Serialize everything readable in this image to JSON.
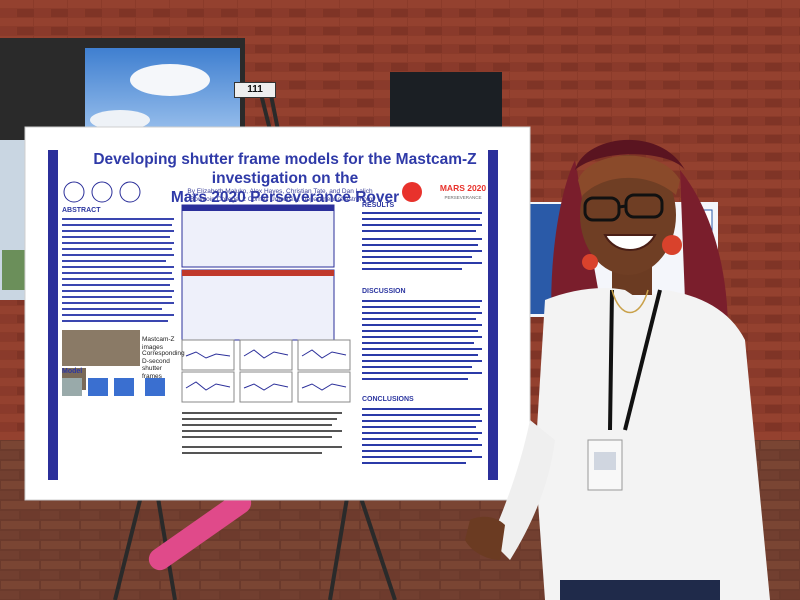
{
  "scene": {
    "description_free": true
  },
  "sign": {
    "number": "111"
  },
  "poster": {
    "title_line1": "Developing shutter frame models for the Mastcam-Z investigation on the",
    "title_line2": "Mars 2020 Perseverance Rover",
    "authors": "By Elizabeth Maluko, Alex Hayes, Christian Tate, and Dan Lalich",
    "affiliations": "1 Bowdoin College, 2 Cornell University, Department of Astronomy",
    "logo_text": "MARS 2020",
    "logo_sub": "PERSEVERANCE",
    "sections": {
      "abstract": "ABSTRACT",
      "results": "RESULTS",
      "discussion": "DISCUSSION",
      "conclusions": "CONCLUSIONS",
      "model": "Model"
    },
    "figure_labels": {
      "mastcam_images": "Mastcam-Z images",
      "corresponding": "Corresponding D-second shutter frames"
    }
  },
  "colors": {
    "brick": "#8b3b2a",
    "poster_title": "#2f3aa8",
    "poster_border": "#2b2f9a",
    "headband": "#8a4a2a",
    "hair": "#7a1e2c",
    "shirt": "#f3f3f3"
  }
}
